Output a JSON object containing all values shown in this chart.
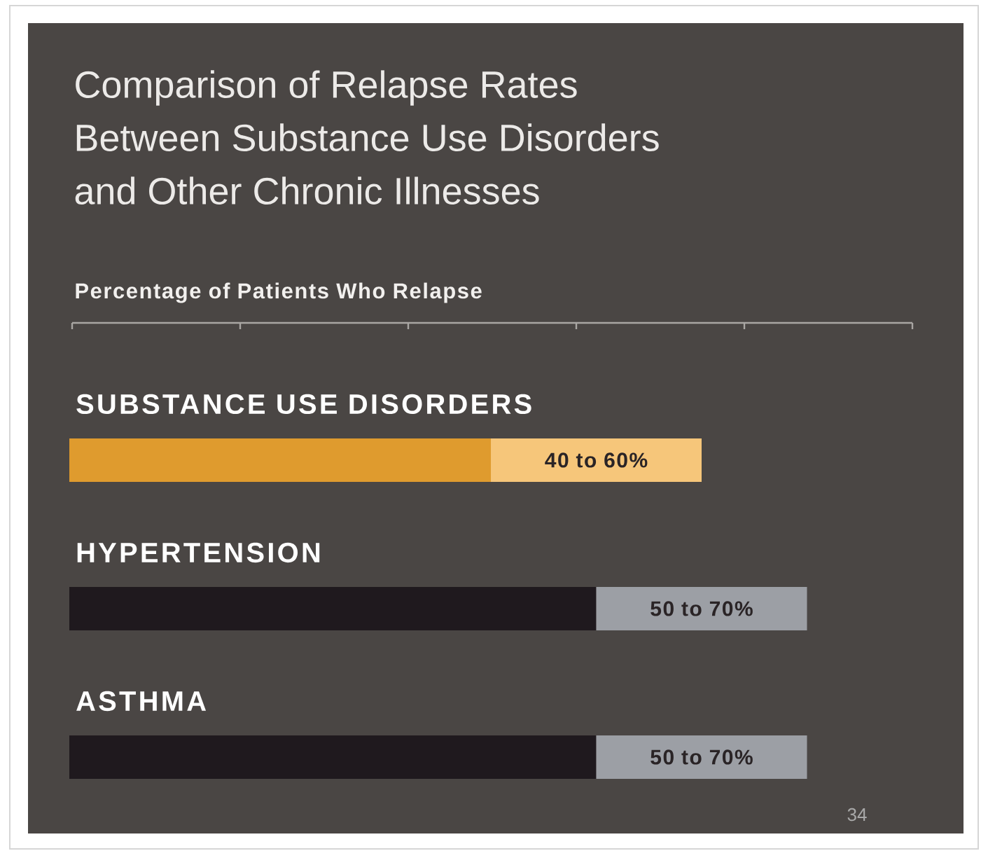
{
  "chart_data": {
    "type": "bar",
    "orientation": "horizontal",
    "stacked": true,
    "title": "Comparison of Relapse Rates Between Substance Use Disorders and Other Chronic Illnesses",
    "xlabel": "Percentage of Patients Who Relapse",
    "categories": [
      "SUBSTANCE USE DISORDERS",
      "HYPERTENSION",
      "ASTHMA"
    ],
    "series": [
      {
        "colors": [
          "#df9b2e",
          "#1f191e",
          "#1f191e"
        ],
        "values": [
          40,
          50,
          50
        ],
        "value_labels": [
          "40 to 60%",
          "50 to 70%",
          "50 to 70%"
        ]
      },
      {
        "colors": [
          "#f6c67a",
          "#9c9fa5",
          "#9c9fa5"
        ],
        "values": [
          20,
          20,
          20
        ]
      }
    ],
    "annotations": [
      "34"
    ]
  }
}
